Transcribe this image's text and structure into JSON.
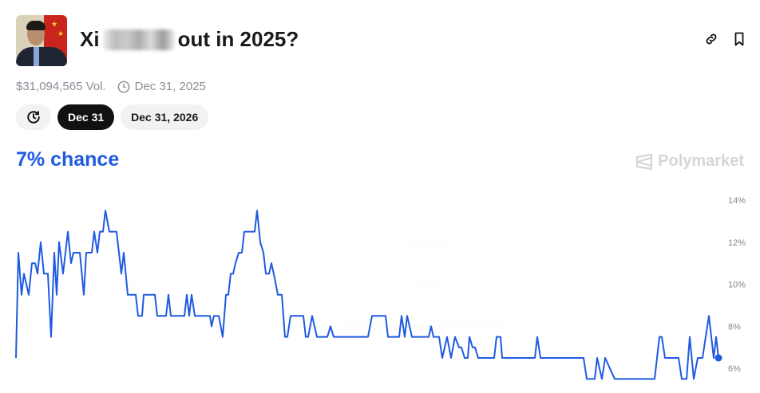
{
  "header": {
    "title_prefix": "Xi",
    "title_suffix": "out in 2025?",
    "volume": "$31,094,565 Vol.",
    "end_date": "Dec 31, 2025"
  },
  "icons": {
    "link": "link-icon",
    "bookmark": "bookmark-icon",
    "clock": "clock-icon",
    "history": "history-icon"
  },
  "chips": [
    {
      "label": "Dec 31",
      "active": true
    },
    {
      "label": "Dec 31, 2026",
      "active": false
    }
  ],
  "chance": "7% chance",
  "brand": "Polymarket",
  "colors": {
    "line": "#1f5ae0",
    "accent": "#1f5ae0"
  },
  "chart_data": {
    "type": "line",
    "title": "",
    "xlabel": "",
    "ylabel": "",
    "ylim": [
      5.2,
      14.3
    ],
    "yticks": [
      "14%",
      "12%",
      "10%",
      "8%",
      "6%"
    ],
    "ytick_values": [
      14,
      12,
      10,
      8,
      6
    ],
    "grid": true,
    "series": [
      {
        "values": [
          6.5,
          11.5,
          9.5,
          10.5,
          9.5,
          11,
          11,
          10.5,
          12,
          10.5,
          10.5,
          7.5,
          11.5,
          9.5,
          12,
          10.5,
          12.5,
          11,
          11.5,
          11.5,
          9.5,
          11.5,
          11.5,
          12.5,
          11.5,
          12.5,
          12.5,
          13.5,
          12.5,
          12.5,
          10.5,
          11.5,
          9.5,
          9.5,
          8.5,
          8.5,
          9.5,
          9.5,
          8.5,
          8.5,
          9.5,
          8.5,
          8.5,
          9.5,
          8.5,
          9.5,
          8.5,
          8.5,
          8,
          8.5,
          8.5,
          7.5,
          9.5,
          9.5,
          10.5,
          10.5,
          11,
          11.5,
          11.5,
          12.5,
          12.5,
          13.5,
          12,
          11.5,
          10.5,
          10.5,
          11,
          10.3,
          9.5,
          9.5,
          7.5,
          7.5,
          8.5,
          8.5,
          7.5,
          7.5,
          8.5,
          7.5,
          7.5,
          8,
          7.5,
          7.5,
          8.5,
          8.5,
          7.5,
          7.5,
          8.5,
          7.5,
          8.5,
          7.5,
          7.5,
          8,
          7.5,
          7.5,
          6.5,
          7.5,
          6.5,
          7.5,
          7,
          7,
          6.5,
          6.5,
          7.5,
          7,
          7,
          6.5,
          6.5,
          7.5,
          7.5,
          6.5,
          6.5,
          7.5,
          6.5,
          6.5,
          5.5,
          5.5,
          6.5,
          5.5,
          6.5,
          5.5,
          5.5,
          7.5,
          7.5,
          6.5,
          6.5,
          5.5,
          5.5,
          7.5,
          5.5,
          6.5,
          6.5,
          8.5,
          6.5,
          7.5,
          6.5
        ]
      }
    ],
    "legend": "none"
  }
}
